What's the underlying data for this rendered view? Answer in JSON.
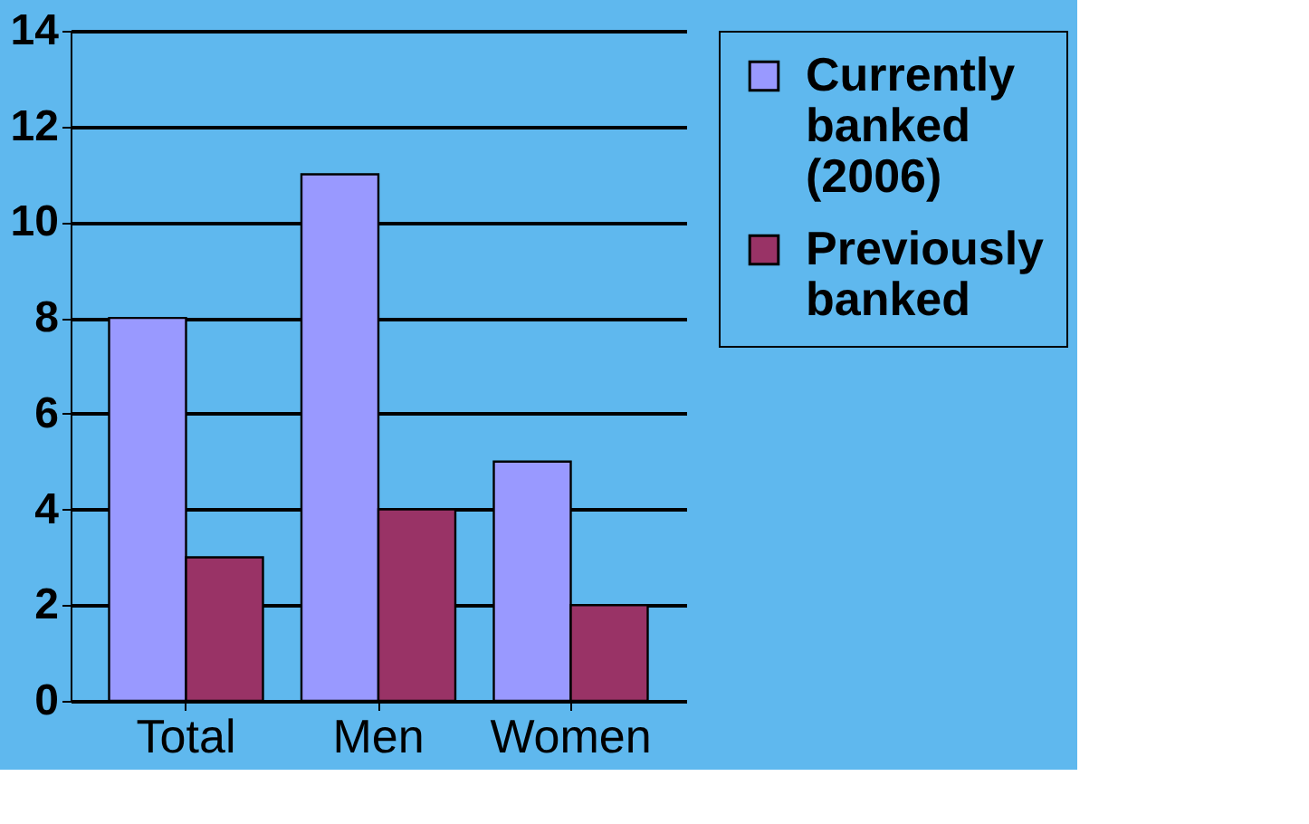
{
  "chart_data": {
    "type": "bar",
    "categories": [
      "Total",
      "Men",
      "Women"
    ],
    "series": [
      {
        "name": "Currently banked (2006)",
        "color": "#9999ff",
        "values": [
          8,
          11,
          5
        ]
      },
      {
        "name": "Previously banked",
        "color": "#993366",
        "values": [
          3,
          4,
          2
        ]
      }
    ],
    "ylim": [
      0,
      14
    ],
    "yticks": [
      0,
      2,
      4,
      6,
      8,
      10,
      12,
      14
    ],
    "grid": "y",
    "legend": "right"
  }
}
